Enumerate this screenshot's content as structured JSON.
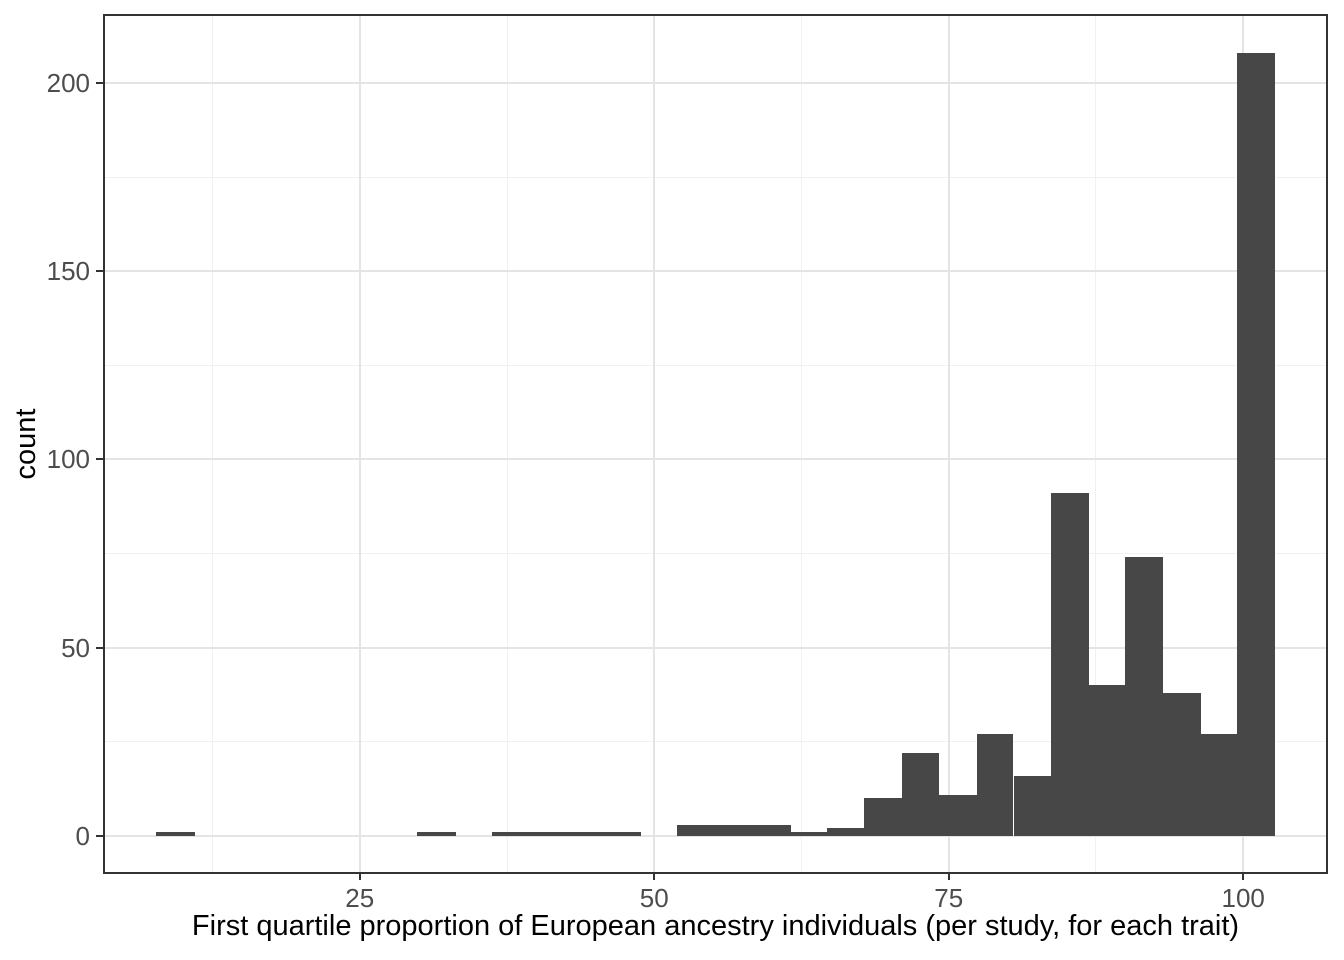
{
  "chart_data": {
    "type": "bar",
    "subtype": "histogram",
    "title": "",
    "xlabel": "First quartile proportion of European ancestry individuals (per study, for each trait)",
    "ylabel": "count",
    "x_domain": [
      3.2,
      107.2
    ],
    "y_domain": [
      -10.1,
      218.3
    ],
    "x_major_ticks": [
      25,
      50,
      75,
      100
    ],
    "x_tick_labels": [
      "25",
      "50",
      "75",
      "100"
    ],
    "x_minor_gridlines": [
      12.5,
      37.5,
      62.5,
      87.5
    ],
    "y_major_ticks": [
      0,
      50,
      100,
      150,
      200
    ],
    "y_tick_labels": [
      "0",
      "50",
      "100",
      "150",
      "200"
    ],
    "y_minor_gridlines": [
      25,
      75,
      125,
      175
    ],
    "approx_bin_width": 3.2,
    "grid": true,
    "legend": "none",
    "bars": [
      {
        "x0": 7.7,
        "x1": 11.0,
        "count": 1
      },
      {
        "x0": 29.9,
        "x1": 33.2,
        "count": 1
      },
      {
        "x0": 36.2,
        "x1": 48.9,
        "count": 1
      },
      {
        "x0": 51.9,
        "x1": 61.6,
        "count": 3
      },
      {
        "x0": 61.6,
        "x1": 64.7,
        "count": 1
      },
      {
        "x0": 64.7,
        "x1": 67.8,
        "count": 2
      },
      {
        "x0": 67.8,
        "x1": 71.0,
        "count": 10
      },
      {
        "x0": 71.0,
        "x1": 74.2,
        "count": 22
      },
      {
        "x0": 74.2,
        "x1": 77.4,
        "count": 11
      },
      {
        "x0": 77.4,
        "x1": 80.5,
        "count": 27
      },
      {
        "x0": 80.5,
        "x1": 83.7,
        "count": 16
      },
      {
        "x0": 83.7,
        "x1": 86.9,
        "count": 91
      },
      {
        "x0": 86.9,
        "x1": 90.0,
        "count": 40
      },
      {
        "x0": 90.0,
        "x1": 93.2,
        "count": 74
      },
      {
        "x0": 93.2,
        "x1": 96.4,
        "count": 38
      },
      {
        "x0": 96.4,
        "x1": 99.5,
        "count": 27
      },
      {
        "x0": 99.5,
        "x1": 102.7,
        "count": 208
      }
    ],
    "colors": {
      "bar_fill": "#474747",
      "grid_major": "#e4e4e4",
      "grid_minor": "#f1f1f1",
      "panel_border": "#333333",
      "tick_mark": "#333333",
      "tick_label": "#4d4d4d",
      "axis_title": "#000000",
      "background": "#ffffff"
    }
  }
}
